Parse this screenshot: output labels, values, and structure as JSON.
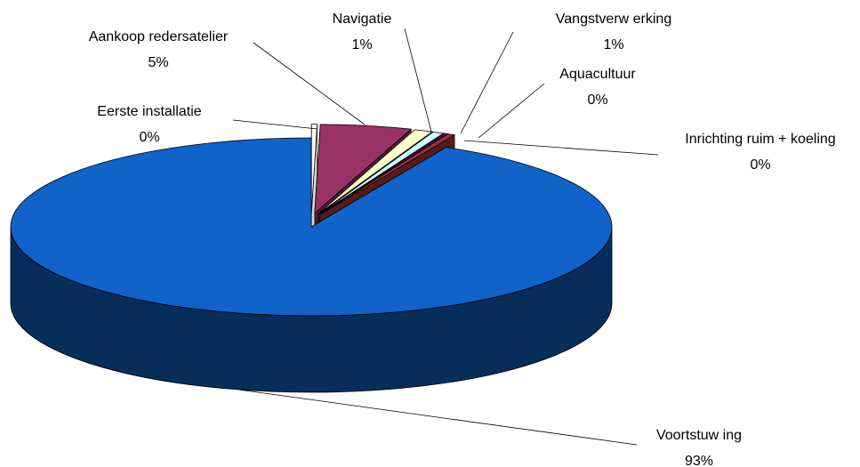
{
  "chart_data": {
    "type": "pie",
    "categories": [
      "Eerste installatie",
      "Aankoop redersatelier",
      "Navigatie",
      "Vangstverw erking",
      "Aquacultuur",
      "Inrichting ruim + koeling",
      "Voortstuw ing"
    ],
    "values": [
      0.3,
      4.9,
      1,
      0.6,
      0.2,
      0.4,
      92.6
    ],
    "value_labels": [
      "0%",
      "5%",
      "1%",
      "1%",
      "0%",
      "0%",
      "93%"
    ],
    "colors": [
      "#ffffff",
      "#993366",
      "#ffffcc",
      "#ccffff",
      "#660066",
      "#993333",
      "#0f63c9"
    ]
  }
}
